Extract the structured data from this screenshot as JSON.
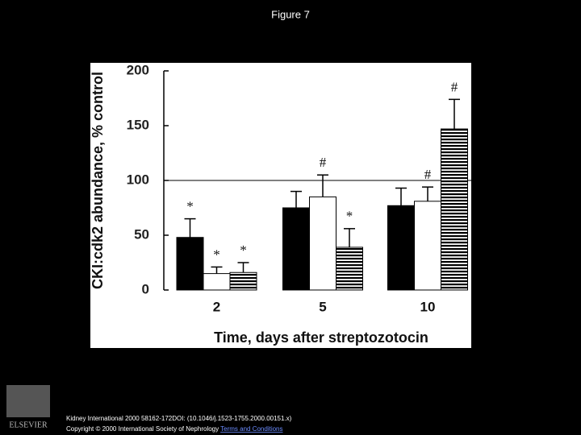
{
  "slide_title": "Figure 7",
  "chart_data": {
    "type": "bar",
    "y_label": "CKI:cdk2 abundance, % control",
    "x_label": "Time, days after streptozotocin",
    "categories": [
      "2",
      "5",
      "10"
    ],
    "ylim": [
      0,
      200
    ],
    "yticks": [
      0,
      50,
      100,
      150,
      200
    ],
    "reference_line": 100,
    "series": [
      {
        "color": "#000000",
        "hatch": false,
        "values": [
          48,
          75,
          77
        ],
        "errors": [
          17,
          15,
          16
        ],
        "annotations": [
          "*",
          null,
          null
        ]
      },
      {
        "color": "#ffffff",
        "hatch": false,
        "values": [
          15,
          85,
          81
        ],
        "errors": [
          6,
          20,
          13
        ],
        "annotations": [
          "*",
          "#",
          "#"
        ]
      },
      {
        "color": "#000000",
        "hatch": true,
        "values": [
          16,
          39,
          147
        ],
        "errors": [
          9,
          17,
          27
        ],
        "annotations": [
          "*",
          "*",
          "#"
        ]
      }
    ]
  },
  "footer": {
    "citation": "Kidney International 2000 58162-172DOI: (10.1046/j.1523-1755.2000.00151.x)",
    "copyright": "Copyright © 2000 International Society of Nephrology",
    "link": "Terms and Conditions"
  },
  "logo": "ELSEVIER"
}
